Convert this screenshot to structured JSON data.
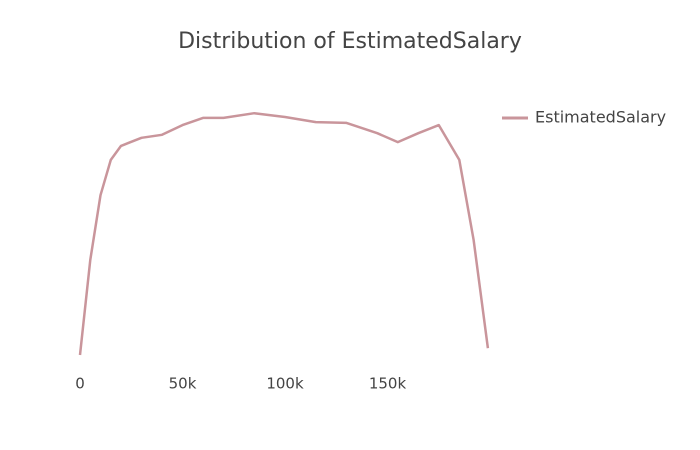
{
  "chart_data": {
    "type": "line",
    "title": "Distribution of EstimatedSalary",
    "x": [
      0,
      5000,
      10000,
      15000,
      20000,
      30000,
      40000,
      50000,
      60000,
      70000,
      85000,
      100000,
      115000,
      130000,
      145000,
      155000,
      165000,
      175000,
      185000,
      192000,
      199000
    ],
    "series": [
      {
        "name": "EstimatedSalary",
        "color": "#c9959b",
        "values": [
          0,
          2.24e-06,
          3.76e-06,
          4.59e-06,
          4.92e-06,
          5.11e-06,
          5.18e-06,
          5.41e-06,
          5.58e-06,
          5.58e-06,
          5.69e-06,
          5.6e-06,
          5.48e-06,
          5.46e-06,
          5.22e-06,
          5.01e-06,
          5.22e-06,
          5.41e-06,
          4.59e-06,
          2.71e-06,
          1.6e-07
        ]
      }
    ],
    "xlim": [
      0,
      200000
    ],
    "xticks": [
      0,
      {
        "value": 50000,
        "label": "50k"
      },
      {
        "value": 100000,
        "label": "100k"
      },
      {
        "value": 150000,
        "label": "150k"
      }
    ],
    "ylim": [
      0,
      6e-06
    ],
    "legend": "top-right"
  }
}
